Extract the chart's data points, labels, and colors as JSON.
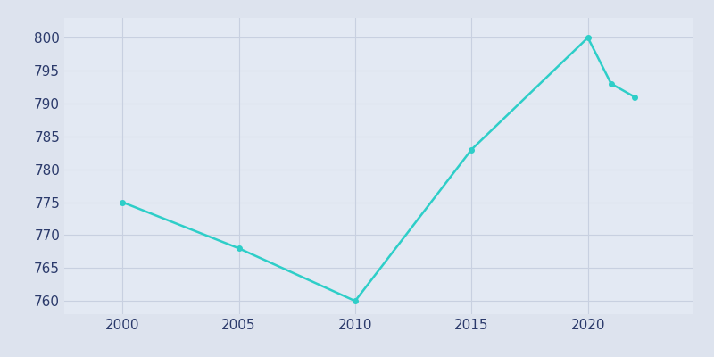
{
  "years": [
    2000,
    2005,
    2010,
    2015,
    2020,
    2021,
    2022
  ],
  "population": [
    775,
    768,
    760,
    783,
    800,
    793,
    791
  ],
  "line_color": "#2ecec8",
  "background_color": "#dde3ee",
  "plot_bg_color": "#e3e9f3",
  "grid_color": "#c8d0e0",
  "tick_color": "#2b3a6b",
  "ylim": [
    758,
    803
  ],
  "yticks": [
    760,
    765,
    770,
    775,
    780,
    785,
    790,
    795,
    800
  ],
  "xticks": [
    2000,
    2005,
    2010,
    2015,
    2020
  ],
  "linewidth": 1.8,
  "markersize": 4,
  "figsize": [
    8.0,
    4.0
  ],
  "dpi": 100
}
